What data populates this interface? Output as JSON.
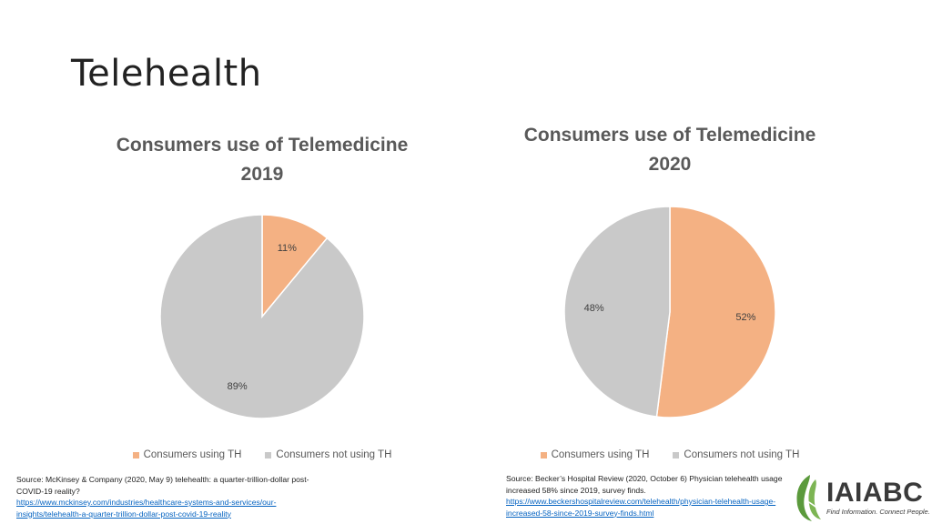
{
  "slide": {
    "title": "Telehealth"
  },
  "colors": {
    "using": "#F4B183",
    "not_using": "#C9C9C9",
    "link": "#0563C1",
    "logo_green": "#5B9A3C"
  },
  "chart_data": [
    {
      "type": "pie",
      "title_line1": "Consumers  use of Telemedicine",
      "title_line2": "2019",
      "categories": [
        "Consumers using TH",
        "Consumers not using TH"
      ],
      "values": [
        11,
        89
      ],
      "labels": [
        "11%",
        "89%"
      ],
      "legend": [
        "Consumers using TH",
        "Consumers not using TH"
      ],
      "legend_position": "bottom"
    },
    {
      "type": "pie",
      "title_line1": "Consumers  use of Telemedicine",
      "title_line2": "2020",
      "categories": [
        "Consumers using TH",
        "Consumers not using TH"
      ],
      "values": [
        52,
        48
      ],
      "labels": [
        "52%",
        "48%"
      ],
      "legend": [
        "Consumers using TH",
        "Consumers not using TH"
      ],
      "legend_position": "bottom"
    }
  ],
  "sources": {
    "left": {
      "text": "Source: McKinsey & Company (2020, May 9) telehealth: a quarter-trillion-dollar post-COVID-19 reality?",
      "link": "https://www.mckinsey.com/industries/healthcare-systems-and-services/our-insights/telehealth-a-quarter-trillion-dollar-post-covid-19-reality"
    },
    "right": {
      "text": "Source: Becker’s Hospital Review (2020, October 6) Physician telehealth usage increased 58% since 2019, survey finds.",
      "link": "https://www.beckershospitalreview.com/telehealth/physician-telehealth-usage-increased-58-since-2019-survey-finds.html"
    }
  },
  "logo": {
    "name": "IAIABC",
    "tagline": "Find Information. Connect People."
  }
}
